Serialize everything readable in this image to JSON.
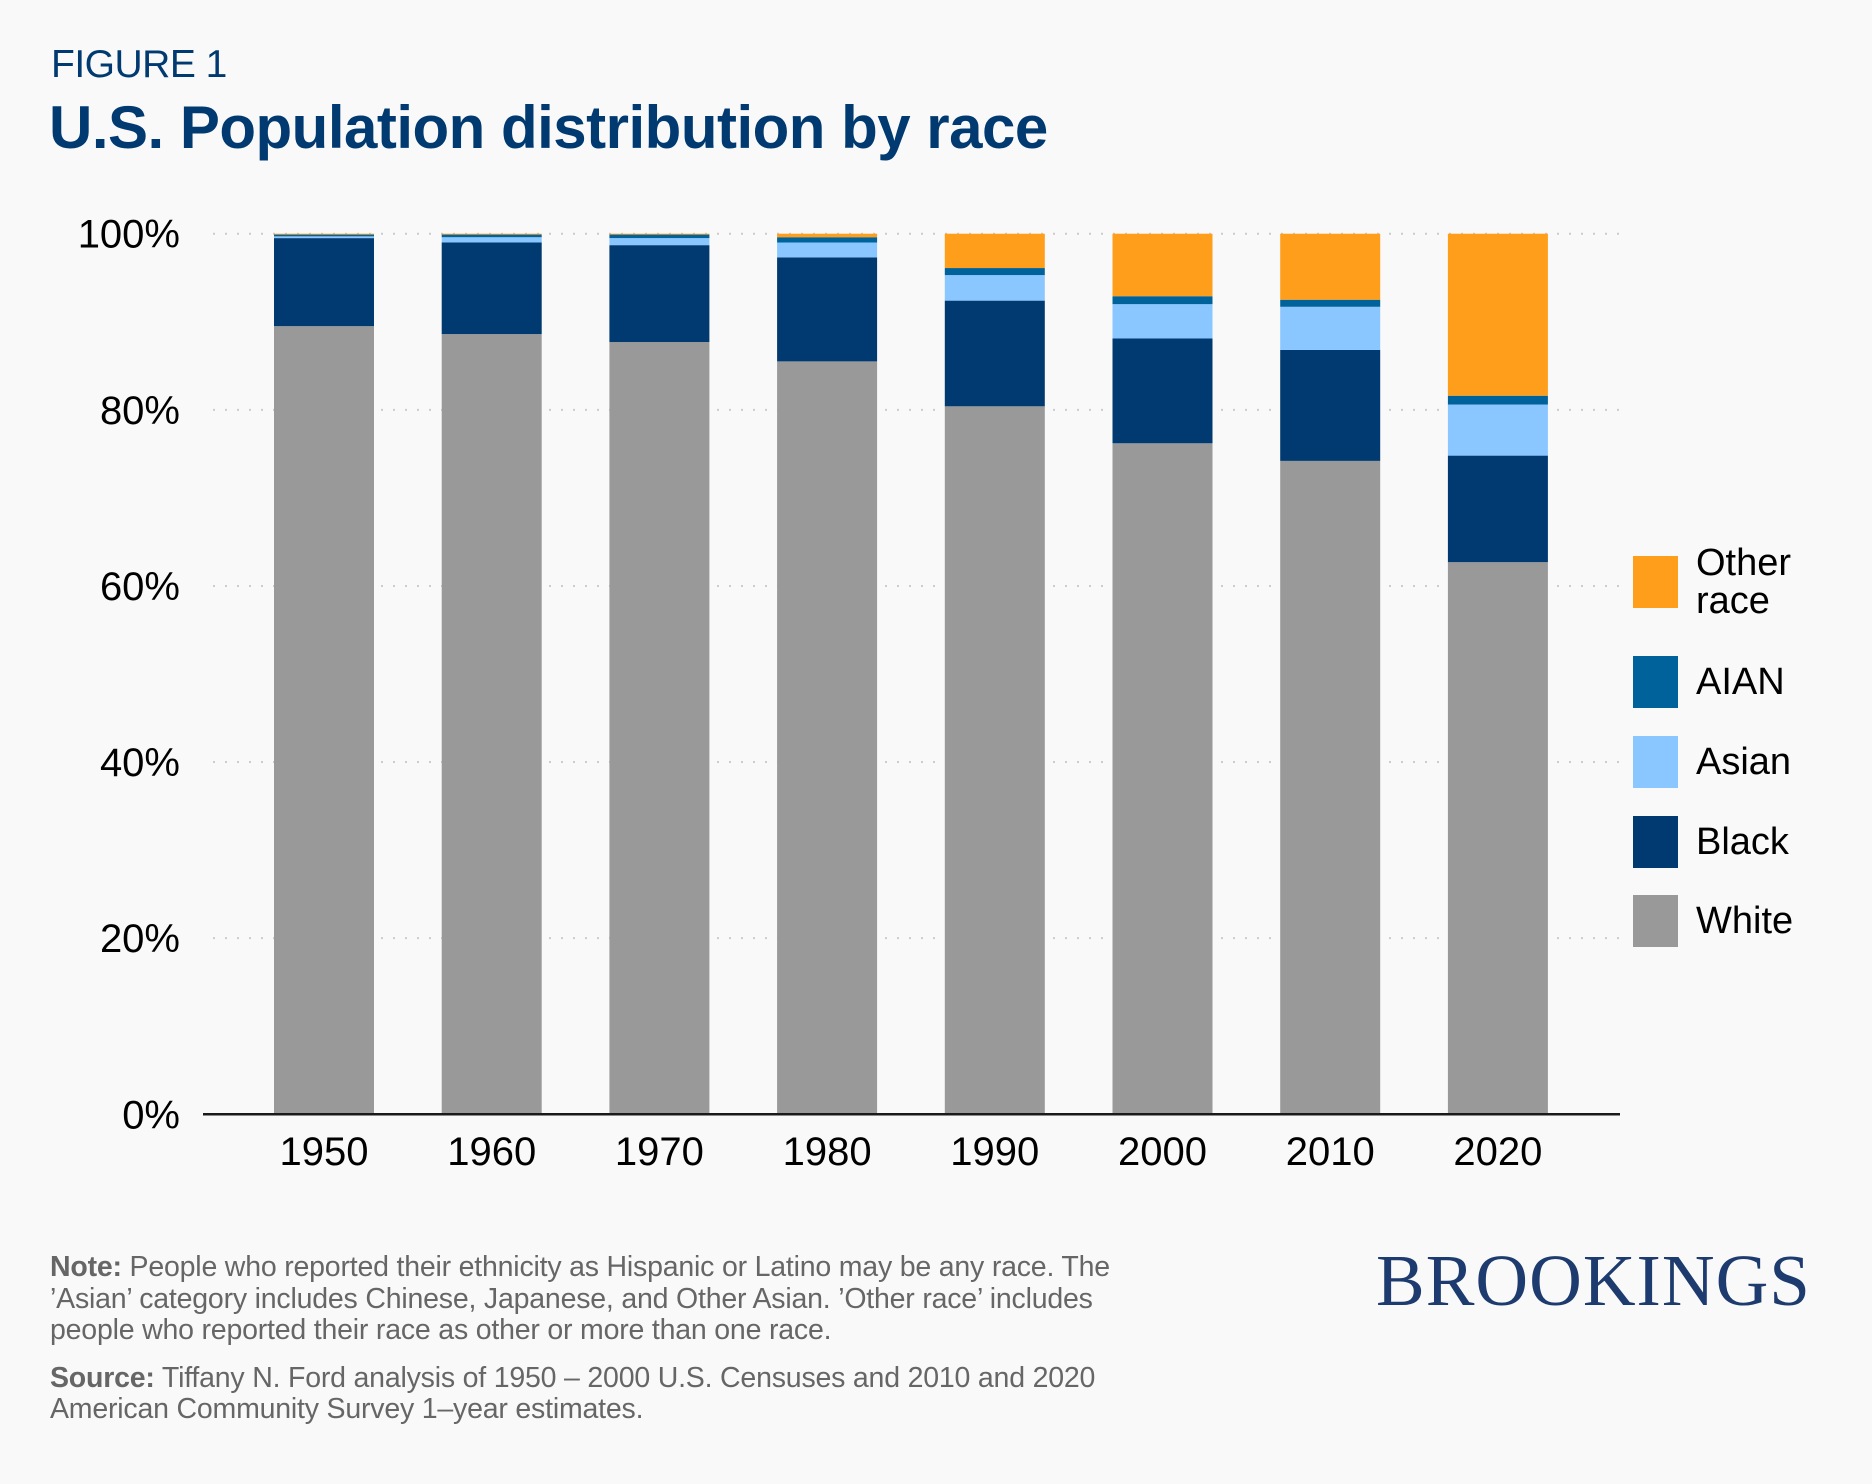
{
  "header": {
    "figure_label": "FIGURE 1",
    "title": "U.S. Population distribution by race"
  },
  "colors": {
    "background": "#f9f9f9",
    "title": "#003a70",
    "White": "#999999",
    "Black": "#003a70",
    "Asian": "#8ac6ff",
    "AIAN": "#00629b",
    "Other race": "#ff9e1b",
    "gridline": "#cccccc",
    "axis": "#1a1a1a",
    "logo": "#1d3b6e",
    "notes": "#666666"
  },
  "chart_data": {
    "type": "bar",
    "stacked": true,
    "title": "U.S. Population distribution by race",
    "xlabel": "",
    "ylabel": "",
    "categories": [
      "1950",
      "1960",
      "1970",
      "1980",
      "1990",
      "2000",
      "2010",
      "2020"
    ],
    "series": [
      {
        "name": "White",
        "values": [
          89.5,
          88.6,
          87.7,
          85.5,
          80.4,
          76.2,
          74.2,
          62.7
        ]
      },
      {
        "name": "Black",
        "values": [
          10.0,
          10.4,
          11.0,
          11.8,
          12.0,
          11.9,
          12.6,
          12.1
        ]
      },
      {
        "name": "Asian",
        "values": [
          0.2,
          0.6,
          0.8,
          1.7,
          2.9,
          3.9,
          4.9,
          5.8
        ]
      },
      {
        "name": "AIAN",
        "values": [
          0.2,
          0.3,
          0.4,
          0.6,
          0.8,
          0.9,
          0.8,
          1.0
        ]
      },
      {
        "name": "Other race",
        "values": [
          0.1,
          0.1,
          0.1,
          0.4,
          3.9,
          7.1,
          7.5,
          18.4
        ]
      }
    ],
    "ylim": [
      0,
      100
    ],
    "yticks": [
      0,
      20,
      40,
      60,
      80,
      100
    ],
    "ytick_labels": [
      "0%",
      "20%",
      "40%",
      "60%",
      "80%",
      "100%"
    ],
    "grid": "horizontal dotted",
    "legend": {
      "placement": "right",
      "order": [
        "Other race",
        "AIAN",
        "Asian",
        "Black",
        "White"
      ],
      "labels": [
        "Other race",
        "AIAN",
        "Asian",
        "Black",
        "White"
      ]
    }
  },
  "footer": {
    "note_label": "Note:",
    "note_text": " People who reported their ethnicity as Hispanic or Latino may be any race. The ’Asian’ category includes Chinese, Japanese, and Other Asian. ’Other race’ includes people who reported their race as other or more than one race.",
    "source_label": "Source:",
    "source_text": " Tiffany N. Ford analysis of 1950 – 2000 U.S. Censuses and 2010 and 2020 American Community Survey 1–year estimates.",
    "logo": "BROOKINGS"
  }
}
